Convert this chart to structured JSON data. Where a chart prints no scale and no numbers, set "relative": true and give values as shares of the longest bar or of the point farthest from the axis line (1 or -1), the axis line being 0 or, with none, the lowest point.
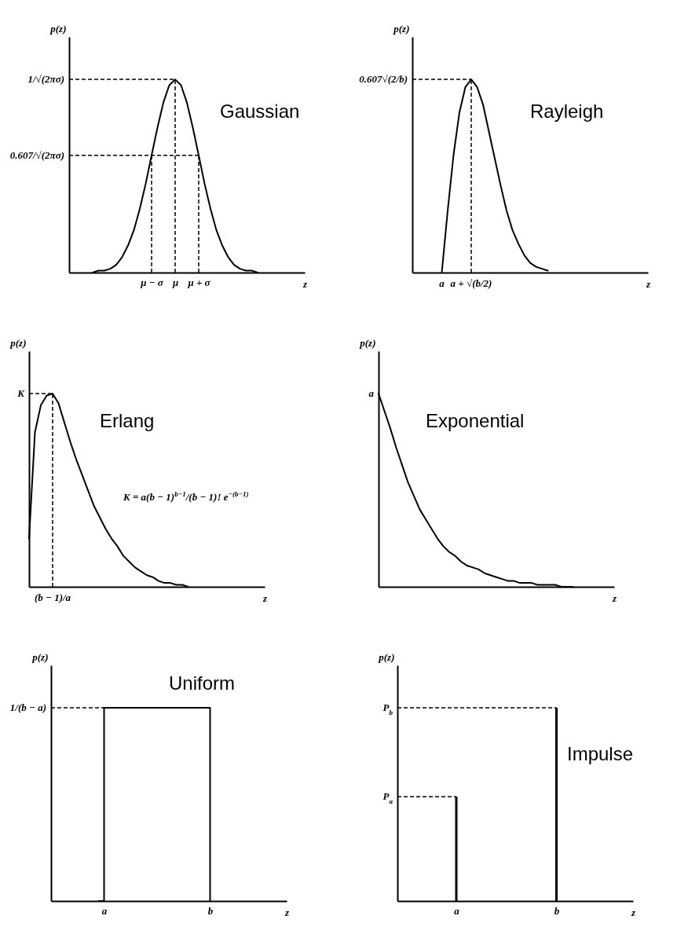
{
  "chart_data": [
    {
      "type": "line",
      "relative": true,
      "ylabel": "p(z)",
      "xlabel": "z",
      "categories": [
        null,
        null,
        null,
        null,
        null,
        null,
        null,
        null,
        null,
        null,
        null,
        null,
        null,
        null,
        "μ − σ",
        null,
        null,
        null,
        "μ",
        null,
        null,
        null,
        "μ + σ",
        null,
        null,
        null,
        null,
        null,
        null,
        null,
        null,
        null,
        null,
        null,
        null,
        null,
        null,
        null,
        null,
        null,
        null
      ],
      "series": [
        {
          "color": "#000000",
          "values": [
            null,
            null,
            null,
            null,
            0,
            0.01,
            0.01,
            0.02,
            0.04,
            0.08,
            0.14,
            0.22,
            0.33,
            0.46,
            0.607,
            0.75,
            0.88,
            0.97,
            1,
            0.97,
            0.88,
            0.75,
            0.607,
            0.46,
            0.33,
            0.22,
            0.14,
            0.08,
            0.04,
            0.02,
            0.01,
            0.01,
            0,
            null,
            null,
            null,
            null,
            null,
            null,
            null,
            null
          ]
        }
      ],
      "ref_lines": [
        {
          "axis": "y",
          "value": 1,
          "label": "1/√(2πσ)",
          "line_style": "dashed"
        },
        {
          "axis": "y",
          "value": 0.607,
          "label": "0.607/√(2πσ)",
          "line_style": "dashed"
        },
        {
          "axis": "x",
          "value": "μ − σ",
          "line_style": "dashed"
        },
        {
          "axis": "x",
          "value": "μ",
          "line_style": "dashed"
        },
        {
          "axis": "x",
          "value": "μ + σ",
          "line_style": "dashed"
        }
      ],
      "annotations": [
        "Gaussian"
      ]
    },
    {
      "type": "line",
      "relative": true,
      "ylabel": "p(z)",
      "xlabel": "z",
      "categories": [
        null,
        null,
        null,
        null,
        null,
        null,
        null,
        null,
        null,
        null,
        null,
        null,
        null,
        null,
        null,
        null,
        null,
        null,
        null,
        null,
        null,
        null,
        null,
        null,
        null,
        null,
        null,
        null,
        null,
        null,
        null,
        null,
        null,
        null,
        null,
        null,
        null,
        null,
        null,
        null,
        null
      ],
      "series": [
        {
          "color": "#000000",
          "values": [
            null,
            null,
            null,
            null,
            null,
            0,
            0.32,
            0.61,
            0.83,
            0.96,
            1,
            0.96,
            0.87,
            0.73,
            0.59,
            0.45,
            0.32,
            0.22,
            0.15,
            0.09,
            0.05,
            0.03,
            0.02,
            0.01,
            null,
            null,
            null,
            null,
            null,
            null,
            null,
            null,
            null,
            null,
            null,
            null,
            null,
            null,
            null,
            null,
            null
          ]
        }
      ],
      "ref_lines": [
        {
          "axis": "y",
          "value": 1,
          "label": "0.607√(2/b)",
          "line_style": "dashed"
        },
        {
          "axis": "x",
          "label": "a + √(b/2)",
          "line_style": "dashed"
        }
      ],
      "annotations": [
        "Rayleigh",
        "a"
      ]
    },
    {
      "type": "line",
      "relative": true,
      "ylabel": "p(z)",
      "xlabel": "z",
      "categories": [
        null,
        null,
        null,
        null,
        null,
        null,
        null,
        null,
        null,
        null,
        null,
        null,
        null,
        null,
        null,
        null,
        null,
        null,
        null,
        null,
        null,
        null,
        null,
        null,
        null,
        null,
        null,
        null,
        null,
        null,
        null,
        null,
        null,
        null,
        null,
        null,
        null,
        null,
        null,
        null,
        null
      ],
      "series": [
        {
          "color": "#000000",
          "values": [
            0.25,
            0.8,
            0.94,
            0.99,
            1,
            0.95,
            0.85,
            0.75,
            0.66,
            0.58,
            0.5,
            0.42,
            0.36,
            0.3,
            0.25,
            0.21,
            0.16,
            0.13,
            0.1,
            0.08,
            0.06,
            0.05,
            0.03,
            0.02,
            0.02,
            0.01,
            0.01,
            0,
            null,
            null,
            null,
            null,
            null,
            null,
            null,
            null,
            null,
            null,
            null,
            null,
            null
          ]
        }
      ],
      "ref_lines": [
        {
          "axis": "y",
          "value": 1,
          "label": "K",
          "line_style": "dashed"
        },
        {
          "axis": "x",
          "label": "(b − 1)/a",
          "line_style": "dashed"
        }
      ],
      "annotations": [
        "Erlang",
        "K = a(b − 1)$^{b−1}$/(b − 1)! e$^{−(b−1)}$"
      ]
    },
    {
      "type": "line",
      "relative": true,
      "ylabel": "p(z)",
      "xlabel": "z",
      "categories": [
        null,
        null,
        null,
        null,
        null,
        null,
        null,
        null,
        null,
        null,
        null,
        null,
        null,
        null,
        null,
        null,
        null,
        null,
        null,
        null,
        null,
        null,
        null,
        null,
        null,
        null,
        null,
        null,
        null,
        null,
        null,
        null,
        null,
        null,
        null,
        null,
        null,
        null,
        null,
        null,
        null
      ],
      "series": [
        {
          "color": "#000000",
          "values": [
            1,
            0.91,
            0.82,
            0.72,
            0.63,
            0.54,
            0.47,
            0.4,
            0.35,
            0.3,
            0.25,
            0.21,
            0.18,
            0.16,
            0.13,
            0.11,
            0.1,
            0.09,
            0.07,
            0.06,
            0.05,
            0.04,
            0.03,
            0.03,
            0.02,
            0.02,
            0.02,
            0.01,
            0.01,
            0.01,
            0.01,
            0,
            0,
            0,
            null,
            null,
            null,
            null,
            null,
            null,
            null
          ]
        }
      ],
      "annotations": [
        "Exponential",
        "a"
      ]
    },
    {
      "type": "step",
      "relative": true,
      "ylabel": "p(z)",
      "xlabel": "z",
      "categories": [
        null,
        null,
        null,
        null,
        null,
        null,
        null,
        null,
        null,
        "a",
        null,
        null,
        null,
        null,
        null,
        null,
        null,
        null,
        null,
        null,
        null,
        null,
        null,
        null,
        null,
        null,
        null,
        "b",
        null,
        null,
        null,
        null,
        null,
        null,
        null,
        null,
        null,
        null,
        null,
        null,
        null
      ],
      "series": [
        {
          "color": "#000000",
          "values": [
            null,
            null,
            null,
            null,
            null,
            null,
            null,
            null,
            0,
            1,
            1,
            1,
            1,
            1,
            1,
            1,
            1,
            1,
            1,
            1,
            1,
            1,
            1,
            1,
            1,
            1,
            1,
            0,
            null,
            null,
            null,
            null,
            null,
            null,
            null,
            null,
            null,
            null,
            null,
            null,
            null
          ]
        }
      ],
      "ref_lines": [
        {
          "axis": "y",
          "value": 1,
          "label": "1/(b − a)",
          "line_style": "dashed"
        }
      ],
      "annotations": [
        "Uniform"
      ]
    },
    {
      "type": "bar",
      "relative": true,
      "ylabel": "p(z)",
      "xlabel": "z",
      "categories": [
        null,
        null,
        null,
        null,
        null,
        null,
        null,
        null,
        null,
        null,
        "a",
        null,
        null,
        null,
        null,
        null,
        null,
        null,
        null,
        null,
        null,
        null,
        null,
        null,
        null,
        null,
        null,
        "b",
        null,
        null,
        null,
        null,
        null,
        null,
        null,
        null,
        null,
        null,
        null,
        null,
        null
      ],
      "series": [
        {
          "color": "#000000",
          "values": [
            null,
            null,
            null,
            null,
            null,
            null,
            null,
            null,
            null,
            null,
            0.54,
            null,
            null,
            null,
            null,
            null,
            null,
            null,
            null,
            null,
            null,
            null,
            null,
            null,
            null,
            null,
            null,
            1,
            null,
            null,
            null,
            null,
            null,
            null,
            null,
            null,
            null,
            null,
            null,
            null,
            null
          ]
        }
      ],
      "ref_lines": [
        {
          "axis": "y",
          "value": 1,
          "label": "P$_{b}$",
          "line_style": "dashed"
        },
        {
          "axis": "y",
          "value": 0.54,
          "label": "P$_{a}$",
          "line_style": "dashed"
        }
      ],
      "annotations": [
        "Impulse"
      ]
    }
  ]
}
